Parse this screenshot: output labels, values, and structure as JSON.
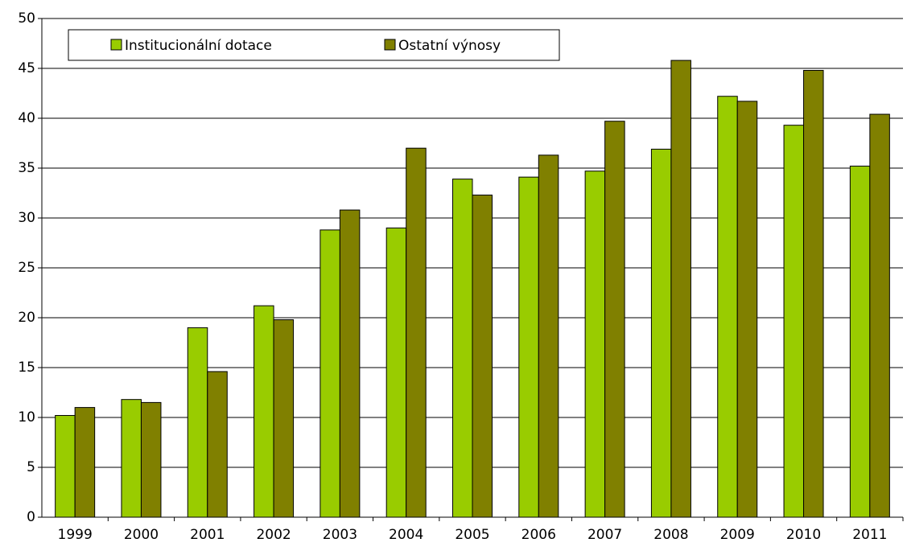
{
  "chart_data": {
    "type": "bar",
    "categories": [
      "1999",
      "2000",
      "2001",
      "2002",
      "2003",
      "2004",
      "2005",
      "2006",
      "2007",
      "2008",
      "2009",
      "2010",
      "2011"
    ],
    "series": [
      {
        "name": "Institucionální dotace",
        "color": "#99cc00",
        "values": [
          10.2,
          11.8,
          19.0,
          21.2,
          28.8,
          29.0,
          33.9,
          34.1,
          34.7,
          36.9,
          42.2,
          39.3,
          35.2
        ]
      },
      {
        "name": "Ostatní výnosy",
        "color": "#808000",
        "values": [
          11.0,
          11.5,
          14.6,
          19.8,
          30.8,
          37.0,
          32.3,
          36.3,
          39.7,
          45.8,
          41.7,
          44.8,
          40.4
        ]
      }
    ],
    "ylim": [
      0,
      50
    ],
    "yticks": [
      0,
      5,
      10,
      15,
      20,
      25,
      30,
      35,
      40,
      45,
      50
    ],
    "grid": true,
    "legend": "top-left"
  }
}
